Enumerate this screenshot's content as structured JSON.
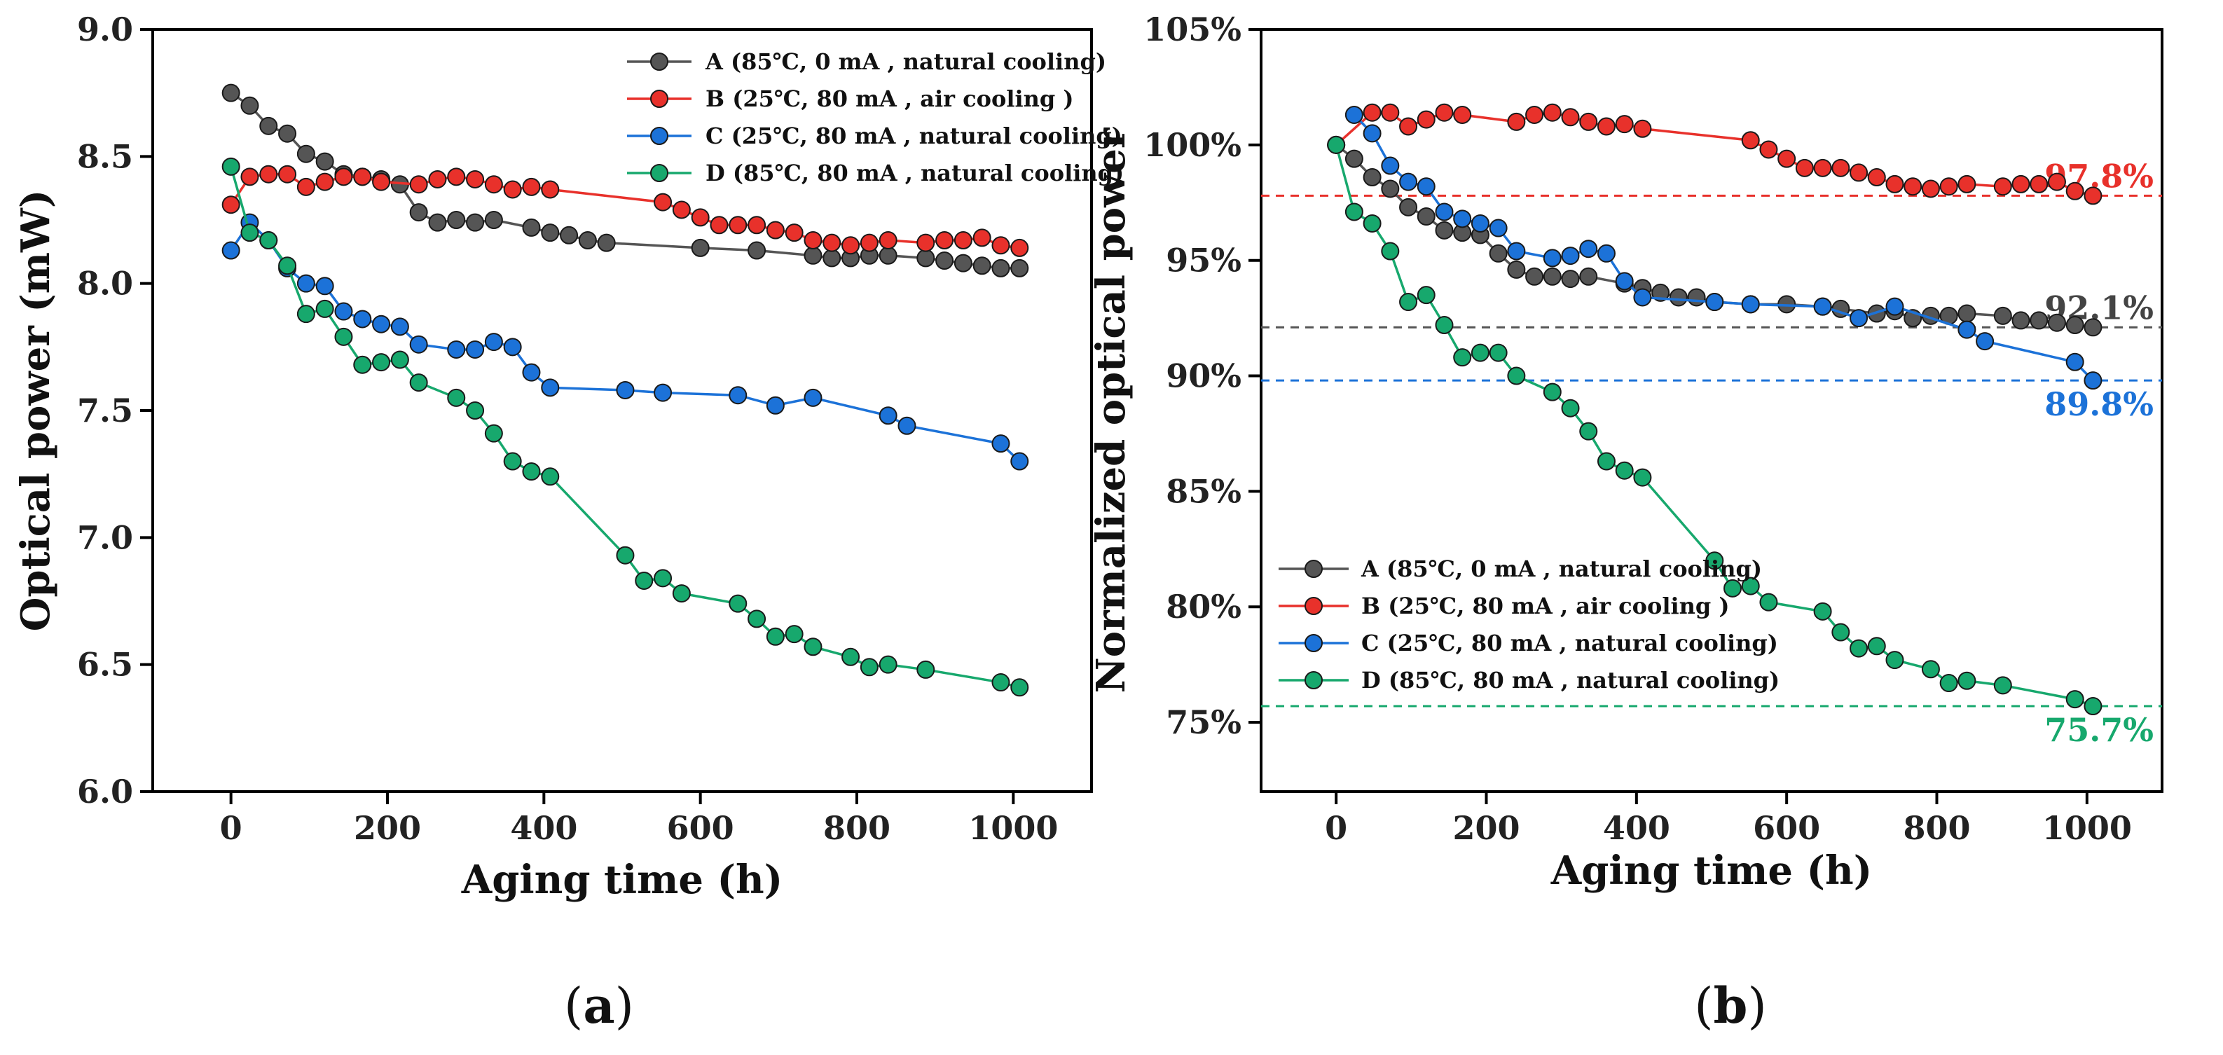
{
  "colors": {
    "A": "#555555",
    "B": "#e8312b",
    "C": "#1c72d8",
    "D": "#17a86d"
  },
  "panels": [
    {
      "id": "a",
      "label_parts": [
        "(",
        "a",
        ")"
      ],
      "legend_position": "top-right",
      "chart_data": {
        "type": "line",
        "title": "",
        "xlabel": "Aging time (h)",
        "ylabel": "Optical power  (mW)",
        "xlim": [
          -100,
          1100
        ],
        "ylim": [
          6.0,
          9.0
        ],
        "xticks": [
          0,
          200,
          400,
          600,
          800,
          1000
        ],
        "yticks": [
          6.0,
          6.5,
          7.0,
          7.5,
          8.0,
          8.5,
          9.0
        ],
        "xtick_labels": [
          "0",
          "200",
          "400",
          "600",
          "800",
          "1000"
        ],
        "ytick_labels": [
          "6.0",
          "6.5",
          "7.0",
          "7.5",
          "8.0",
          "8.5",
          "9.0"
        ],
        "series": [
          {
            "name": "A (85℃, 0 mA , natural cooling)",
            "key": "A",
            "x": [
              0,
              24,
              48,
              72,
              96,
              120,
              144,
              168,
              192,
              216,
              240,
              264,
              288,
              312,
              336,
              384,
              408,
              432,
              456,
              480,
              600,
              672,
              744,
              768,
              792,
              816,
              840,
              888,
              912,
              936,
              960,
              984,
              1008
            ],
            "y": [
              8.75,
              8.7,
              8.62,
              8.59,
              8.51,
              8.48,
              8.43,
              8.42,
              8.41,
              8.39,
              8.28,
              8.24,
              8.25,
              8.24,
              8.25,
              8.22,
              8.2,
              8.19,
              8.17,
              8.16,
              8.14,
              8.13,
              8.11,
              8.1,
              8.1,
              8.11,
              8.11,
              8.1,
              8.09,
              8.08,
              8.07,
              8.06,
              8.06
            ]
          },
          {
            "name": "B (25℃, 80 mA , air cooling )",
            "key": "B",
            "x": [
              0,
              24,
              48,
              72,
              96,
              120,
              144,
              168,
              192,
              240,
              264,
              288,
              312,
              336,
              360,
              384,
              408,
              552,
              576,
              600,
              624,
              648,
              672,
              696,
              720,
              744,
              768,
              792,
              816,
              840,
              888,
              912,
              936,
              960,
              984,
              1008
            ],
            "y": [
              8.31,
              8.42,
              8.43,
              8.43,
              8.38,
              8.4,
              8.42,
              8.42,
              8.4,
              8.39,
              8.41,
              8.42,
              8.41,
              8.39,
              8.37,
              8.38,
              8.37,
              8.32,
              8.29,
              8.26,
              8.23,
              8.23,
              8.23,
              8.21,
              8.2,
              8.17,
              8.16,
              8.15,
              8.16,
              8.17,
              8.16,
              8.17,
              8.17,
              8.18,
              8.15,
              8.14
            ]
          },
          {
            "name": "C (25℃, 80 mA , natural cooling)",
            "key": "C",
            "x": [
              0,
              24,
              48,
              72,
              96,
              120,
              144,
              168,
              192,
              216,
              240,
              288,
              312,
              336,
              360,
              384,
              408,
              504,
              552,
              648,
              696,
              744,
              840,
              864,
              984,
              1008
            ],
            "y": [
              8.13,
              8.24,
              8.17,
              8.06,
              8.0,
              7.99,
              7.89,
              7.86,
              7.84,
              7.83,
              7.76,
              7.74,
              7.74,
              7.77,
              7.75,
              7.65,
              7.59,
              7.58,
              7.57,
              7.56,
              7.52,
              7.55,
              7.48,
              7.44,
              7.37,
              7.3
            ]
          },
          {
            "name": "D (85℃, 80 mA , natural cooling)",
            "key": "D",
            "x": [
              0,
              24,
              48,
              72,
              96,
              120,
              144,
              168,
              192,
              216,
              240,
              288,
              312,
              336,
              360,
              384,
              408,
              504,
              528,
              552,
              576,
              648,
              672,
              696,
              720,
              744,
              792,
              816,
              840,
              888,
              984,
              1008
            ],
            "y": [
              8.46,
              8.2,
              8.17,
              8.07,
              7.88,
              7.9,
              7.79,
              7.68,
              7.69,
              7.7,
              7.61,
              7.55,
              7.5,
              7.41,
              7.3,
              7.26,
              7.24,
              6.93,
              6.83,
              6.84,
              6.78,
              6.74,
              6.68,
              6.61,
              6.62,
              6.57,
              6.53,
              6.49,
              6.5,
              6.48,
              6.43,
              6.41
            ]
          }
        ]
      }
    },
    {
      "id": "b",
      "label_parts": [
        "(",
        "b",
        ")"
      ],
      "legend_position": "bottom-left",
      "chart_data": {
        "type": "line",
        "title": "",
        "xlabel": "Aging time (h)",
        "ylabel": "Normalized optical power",
        "xlim": [
          -100,
          1100
        ],
        "ylim": [
          72,
          105
        ],
        "xticks": [
          0,
          200,
          400,
          600,
          800,
          1000
        ],
        "yticks": [
          75,
          80,
          85,
          90,
          95,
          100,
          105
        ],
        "xtick_labels": [
          "0",
          "200",
          "400",
          "600",
          "800",
          "1000"
        ],
        "ytick_labels": [
          "75%",
          "80%",
          "85%",
          "90%",
          "95%",
          "100%",
          "105%"
        ],
        "reference_lines": [
          {
            "key": "B",
            "y": 97.8,
            "label": "97.8%",
            "label_side": "above"
          },
          {
            "key": "A",
            "y": 92.1,
            "label": "92.1%",
            "label_side": "above"
          },
          {
            "key": "C",
            "y": 89.8,
            "label": "89.8%",
            "label_side": "below"
          },
          {
            "key": "D",
            "y": 75.7,
            "label": "75.7%",
            "label_side": "below"
          }
        ],
        "series": [
          {
            "name": "A (85℃, 0 mA , natural cooling)",
            "key": "A",
            "x": [
              0,
              24,
              48,
              72,
              96,
              120,
              144,
              168,
              192,
              216,
              240,
              264,
              288,
              312,
              336,
              384,
              408,
              432,
              456,
              480,
              504,
              552,
              600,
              648,
              672,
              720,
              744,
              768,
              792,
              816,
              840,
              888,
              912,
              936,
              960,
              984,
              1008
            ],
            "y": [
              100.0,
              99.4,
              98.6,
              98.1,
              97.3,
              96.9,
              96.3,
              96.2,
              96.1,
              95.3,
              94.6,
              94.3,
              94.3,
              94.2,
              94.3,
              94.0,
              93.8,
              93.6,
              93.4,
              93.4,
              93.2,
              93.1,
              93.1,
              93.0,
              92.9,
              92.7,
              92.8,
              92.5,
              92.6,
              92.6,
              92.7,
              92.6,
              92.4,
              92.4,
              92.3,
              92.2,
              92.1
            ]
          },
          {
            "name": "B (25℃, 80 mA , air cooling )",
            "key": "B",
            "x": [
              0,
              48,
              72,
              96,
              120,
              144,
              168,
              240,
              264,
              288,
              312,
              336,
              360,
              384,
              408,
              552,
              576,
              600,
              624,
              648,
              672,
              696,
              720,
              744,
              768,
              792,
              816,
              840,
              888,
              912,
              936,
              960,
              984,
              1008
            ],
            "y": [
              100.0,
              101.4,
              101.4,
              100.8,
              101.1,
              101.4,
              101.3,
              101.0,
              101.3,
              101.4,
              101.2,
              101.0,
              100.8,
              100.9,
              100.7,
              100.2,
              99.8,
              99.4,
              99.0,
              99.0,
              99.0,
              98.8,
              98.6,
              98.3,
              98.2,
              98.1,
              98.2,
              98.3,
              98.2,
              98.3,
              98.3,
              98.4,
              98.0,
              97.8
            ]
          },
          {
            "name": "C (25℃, 80 mA , natural cooling)",
            "key": "C",
            "x": [
              24,
              48,
              72,
              96,
              120,
              144,
              168,
              192,
              216,
              240,
              288,
              312,
              336,
              360,
              384,
              408,
              504,
              552,
              648,
              696,
              744,
              840,
              864,
              984,
              1008
            ],
            "y": [
              101.3,
              100.5,
              99.1,
              98.4,
              98.2,
              97.1,
              96.8,
              96.6,
              96.4,
              95.4,
              95.1,
              95.2,
              95.5,
              95.3,
              94.1,
              93.4,
              93.2,
              93.1,
              93.0,
              92.5,
              93.0,
              92.0,
              91.5,
              90.6,
              89.8
            ]
          },
          {
            "name": "D (85℃, 80 mA , natural cooling)",
            "key": "D",
            "x": [
              0,
              24,
              48,
              72,
              96,
              120,
              144,
              168,
              192,
              216,
              240,
              288,
              312,
              336,
              360,
              384,
              408,
              504,
              528,
              552,
              576,
              648,
              672,
              696,
              720,
              744,
              792,
              816,
              840,
              888,
              984,
              1008
            ],
            "y": [
              100.0,
              97.1,
              96.6,
              95.4,
              93.2,
              93.5,
              92.2,
              90.8,
              91.0,
              91.0,
              90.0,
              89.3,
              88.6,
              87.6,
              86.3,
              85.9,
              85.6,
              82.0,
              80.8,
              80.9,
              80.2,
              79.8,
              78.9,
              78.2,
              78.3,
              77.7,
              77.3,
              76.7,
              76.8,
              76.6,
              76.0,
              75.7
            ]
          }
        ]
      }
    }
  ]
}
